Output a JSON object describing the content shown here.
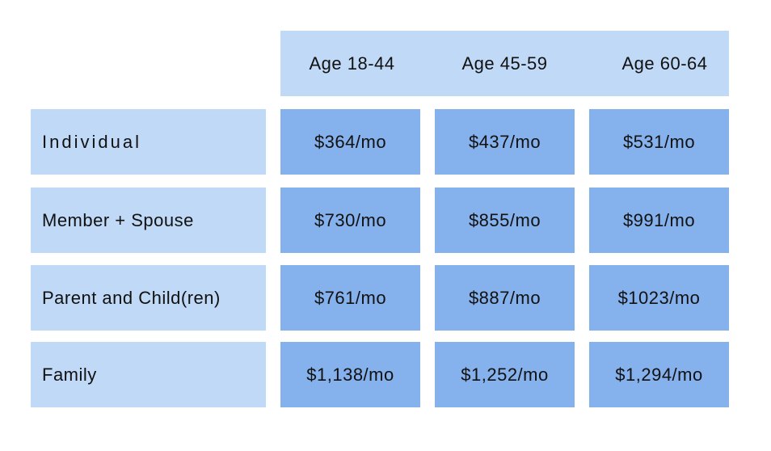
{
  "table": {
    "columns": [
      "Age 18-44",
      "Age 45-59",
      "Age 60-64"
    ],
    "rows": [
      {
        "label": "Individual",
        "cells": [
          "$364/mo",
          "$437/mo",
          "$531/mo"
        ]
      },
      {
        "label": "Member + Spouse",
        "cells": [
          "$730/mo",
          "$855/mo",
          "$991/mo"
        ]
      },
      {
        "label": "Parent and Child(ren)",
        "cells": [
          "$761/mo",
          "$887/mo",
          "$1023/mo"
        ]
      },
      {
        "label": "Family",
        "cells": [
          "$1,138/mo",
          "$1,252/mo",
          "$1,294/mo"
        ]
      }
    ]
  }
}
